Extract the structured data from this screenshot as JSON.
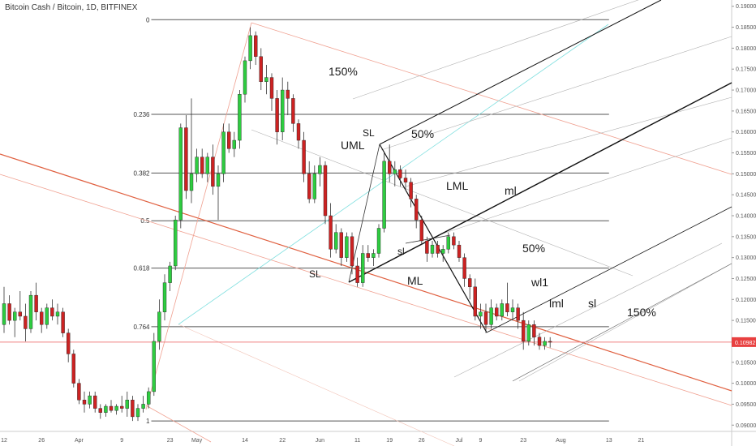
{
  "chart_data": {
    "type": "candlestick",
    "title": "Bitcoin Cash / Bitcoin, 1D, BITFINEX",
    "colors": {
      "up": "#2ecc40",
      "down": "#cc2222",
      "wick": "#333333",
      "price_line": "#f08080",
      "price_badge": "#e84040",
      "fib": "#555555",
      "fork_red": "#e06040",
      "fork_red_light": "#f0a090",
      "fork_black": "#111111",
      "fork_gray": "#b0b0b0",
      "cyan": "#7fdfdf"
    },
    "y_axis": {
      "ylim": [
        0.0885,
        0.1915
      ],
      "ticks": [
        "0.09000",
        "0.09500",
        "0.10000",
        "0.10500",
        "0.11000",
        "0.11500",
        "0.12000",
        "0.12500",
        "0.13000",
        "0.13500",
        "0.14000",
        "0.14500",
        "0.15000",
        "0.15500",
        "0.16000",
        "0.16500",
        "0.17000",
        "0.17500",
        "0.18000",
        "0.18500",
        "0.19000"
      ],
      "current_price": "0.10982"
    },
    "x_axis": {
      "labels": [
        {
          "t": 0,
          "label": "12"
        },
        {
          "t": 7,
          "label": "26"
        },
        {
          "t": 14,
          "label": "Apr"
        },
        {
          "t": 22,
          "label": "9"
        },
        {
          "t": 31,
          "label": "23"
        },
        {
          "t": 36,
          "label": "May"
        },
        {
          "t": 45,
          "label": "14"
        },
        {
          "t": 52,
          "label": "22"
        },
        {
          "t": 59,
          "label": "Jun"
        },
        {
          "t": 66,
          "label": "11"
        },
        {
          "t": 72,
          "label": "19"
        },
        {
          "t": 78,
          "label": "26"
        },
        {
          "t": 85,
          "label": "Jul"
        },
        {
          "t": 89,
          "label": "9"
        },
        {
          "t": 97,
          "label": "23"
        },
        {
          "t": 104,
          "label": "Aug"
        },
        {
          "t": 113,
          "label": "13"
        },
        {
          "t": 119,
          "label": "21"
        }
      ]
    },
    "candles": [
      {
        "t": 0,
        "o": 0.114,
        "h": 0.123,
        "l": 0.112,
        "c": 0.119
      },
      {
        "t": 1,
        "o": 0.119,
        "h": 0.121,
        "l": 0.114,
        "c": 0.115
      },
      {
        "t": 2,
        "o": 0.115,
        "h": 0.118,
        "l": 0.111,
        "c": 0.117
      },
      {
        "t": 3,
        "o": 0.117,
        "h": 0.122,
        "l": 0.115,
        "c": 0.116
      },
      {
        "t": 4,
        "o": 0.116,
        "h": 0.119,
        "l": 0.11,
        "c": 0.113
      },
      {
        "t": 5,
        "o": 0.113,
        "h": 0.122,
        "l": 0.112,
        "c": 0.121
      },
      {
        "t": 6,
        "o": 0.121,
        "h": 0.124,
        "l": 0.115,
        "c": 0.117
      },
      {
        "t": 7,
        "o": 0.117,
        "h": 0.118,
        "l": 0.112,
        "c": 0.114
      },
      {
        "t": 8,
        "o": 0.114,
        "h": 0.119,
        "l": 0.113,
        "c": 0.118
      },
      {
        "t": 9,
        "o": 0.118,
        "h": 0.12,
        "l": 0.115,
        "c": 0.116
      },
      {
        "t": 10,
        "o": 0.116,
        "h": 0.119,
        "l": 0.114,
        "c": 0.117
      },
      {
        "t": 11,
        "o": 0.117,
        "h": 0.118,
        "l": 0.111,
        "c": 0.112
      },
      {
        "t": 12,
        "o": 0.112,
        "h": 0.113,
        "l": 0.105,
        "c": 0.107
      },
      {
        "t": 13,
        "o": 0.107,
        "h": 0.108,
        "l": 0.099,
        "c": 0.1
      },
      {
        "t": 14,
        "o": 0.1,
        "h": 0.101,
        "l": 0.095,
        "c": 0.096
      },
      {
        "t": 15,
        "o": 0.096,
        "h": 0.098,
        "l": 0.093,
        "c": 0.095
      },
      {
        "t": 16,
        "o": 0.095,
        "h": 0.098,
        "l": 0.094,
        "c": 0.097
      },
      {
        "t": 17,
        "o": 0.097,
        "h": 0.098,
        "l": 0.093,
        "c": 0.094
      },
      {
        "t": 18,
        "o": 0.094,
        "h": 0.095,
        "l": 0.0915,
        "c": 0.093
      },
      {
        "t": 19,
        "o": 0.093,
        "h": 0.095,
        "l": 0.092,
        "c": 0.0945
      },
      {
        "t": 20,
        "o": 0.0945,
        "h": 0.096,
        "l": 0.093,
        "c": 0.0935
      },
      {
        "t": 21,
        "o": 0.0935,
        "h": 0.095,
        "l": 0.0925,
        "c": 0.0945
      },
      {
        "t": 22,
        "o": 0.0945,
        "h": 0.097,
        "l": 0.093,
        "c": 0.094
      },
      {
        "t": 23,
        "o": 0.094,
        "h": 0.098,
        "l": 0.092,
        "c": 0.096
      },
      {
        "t": 24,
        "o": 0.096,
        "h": 0.097,
        "l": 0.091,
        "c": 0.092
      },
      {
        "t": 25,
        "o": 0.092,
        "h": 0.095,
        "l": 0.091,
        "c": 0.094
      },
      {
        "t": 26,
        "o": 0.094,
        "h": 0.097,
        "l": 0.093,
        "c": 0.095
      },
      {
        "t": 27,
        "o": 0.095,
        "h": 0.099,
        "l": 0.094,
        "c": 0.098
      },
      {
        "t": 28,
        "o": 0.098,
        "h": 0.112,
        "l": 0.097,
        "c": 0.11
      },
      {
        "t": 29,
        "o": 0.11,
        "h": 0.12,
        "l": 0.108,
        "c": 0.117
      },
      {
        "t": 30,
        "o": 0.117,
        "h": 0.126,
        "l": 0.115,
        "c": 0.124
      },
      {
        "t": 31,
        "o": 0.124,
        "h": 0.129,
        "l": 0.122,
        "c": 0.128
      },
      {
        "t": 32,
        "o": 0.128,
        "h": 0.14,
        "l": 0.127,
        "c": 0.139
      },
      {
        "t": 33,
        "o": 0.139,
        "h": 0.162,
        "l": 0.137,
        "c": 0.161
      },
      {
        "t": 34,
        "o": 0.161,
        "h": 0.164,
        "l": 0.144,
        "c": 0.146
      },
      {
        "t": 35,
        "o": 0.146,
        "h": 0.168,
        "l": 0.143,
        "c": 0.15
      },
      {
        "t": 36,
        "o": 0.15,
        "h": 0.156,
        "l": 0.148,
        "c": 0.154
      },
      {
        "t": 37,
        "o": 0.154,
        "h": 0.156,
        "l": 0.149,
        "c": 0.15
      },
      {
        "t": 38,
        "o": 0.15,
        "h": 0.155,
        "l": 0.148,
        "c": 0.154
      },
      {
        "t": 39,
        "o": 0.154,
        "h": 0.157,
        "l": 0.145,
        "c": 0.147
      },
      {
        "t": 40,
        "o": 0.147,
        "h": 0.152,
        "l": 0.139,
        "c": 0.15
      },
      {
        "t": 41,
        "o": 0.15,
        "h": 0.162,
        "l": 0.148,
        "c": 0.16
      },
      {
        "t": 42,
        "o": 0.16,
        "h": 0.162,
        "l": 0.155,
        "c": 0.156
      },
      {
        "t": 43,
        "o": 0.156,
        "h": 0.16,
        "l": 0.154,
        "c": 0.158
      },
      {
        "t": 44,
        "o": 0.158,
        "h": 0.17,
        "l": 0.156,
        "c": 0.169
      },
      {
        "t": 45,
        "o": 0.169,
        "h": 0.178,
        "l": 0.167,
        "c": 0.177
      },
      {
        "t": 46,
        "o": 0.177,
        "h": 0.185,
        "l": 0.175,
        "c": 0.183
      },
      {
        "t": 47,
        "o": 0.183,
        "h": 0.184,
        "l": 0.176,
        "c": 0.178
      },
      {
        "t": 48,
        "o": 0.178,
        "h": 0.18,
        "l": 0.17,
        "c": 0.172
      },
      {
        "t": 49,
        "o": 0.172,
        "h": 0.176,
        "l": 0.169,
        "c": 0.173
      },
      {
        "t": 50,
        "o": 0.173,
        "h": 0.174,
        "l": 0.165,
        "c": 0.168
      },
      {
        "t": 51,
        "o": 0.168,
        "h": 0.17,
        "l": 0.157,
        "c": 0.16
      },
      {
        "t": 52,
        "o": 0.16,
        "h": 0.173,
        "l": 0.158,
        "c": 0.17
      },
      {
        "t": 53,
        "o": 0.17,
        "h": 0.172,
        "l": 0.164,
        "c": 0.168
      },
      {
        "t": 54,
        "o": 0.168,
        "h": 0.169,
        "l": 0.16,
        "c": 0.162
      },
      {
        "t": 55,
        "o": 0.162,
        "h": 0.163,
        "l": 0.156,
        "c": 0.158
      },
      {
        "t": 56,
        "o": 0.158,
        "h": 0.16,
        "l": 0.148,
        "c": 0.15
      },
      {
        "t": 57,
        "o": 0.15,
        "h": 0.153,
        "l": 0.143,
        "c": 0.144
      },
      {
        "t": 58,
        "o": 0.144,
        "h": 0.152,
        "l": 0.143,
        "c": 0.15
      },
      {
        "t": 59,
        "o": 0.15,
        "h": 0.154,
        "l": 0.147,
        "c": 0.152
      },
      {
        "t": 60,
        "o": 0.152,
        "h": 0.153,
        "l": 0.138,
        "c": 0.14
      },
      {
        "t": 61,
        "o": 0.14,
        "h": 0.143,
        "l": 0.13,
        "c": 0.132
      },
      {
        "t": 62,
        "o": 0.132,
        "h": 0.138,
        "l": 0.131,
        "c": 0.136
      },
      {
        "t": 63,
        "o": 0.136,
        "h": 0.137,
        "l": 0.128,
        "c": 0.13
      },
      {
        "t": 64,
        "o": 0.13,
        "h": 0.136,
        "l": 0.129,
        "c": 0.135
      },
      {
        "t": 65,
        "o": 0.135,
        "h": 0.136,
        "l": 0.126,
        "c": 0.128
      },
      {
        "t": 66,
        "o": 0.128,
        "h": 0.13,
        "l": 0.123,
        "c": 0.124
      },
      {
        "t": 67,
        "o": 0.124,
        "h": 0.133,
        "l": 0.123,
        "c": 0.131
      },
      {
        "t": 68,
        "o": 0.131,
        "h": 0.133,
        "l": 0.129,
        "c": 0.13
      },
      {
        "t": 69,
        "o": 0.13,
        "h": 0.132,
        "l": 0.128,
        "c": 0.131
      },
      {
        "t": 70,
        "o": 0.131,
        "h": 0.138,
        "l": 0.13,
        "c": 0.137
      },
      {
        "t": 71,
        "o": 0.137,
        "h": 0.155,
        "l": 0.136,
        "c": 0.153
      },
      {
        "t": 72,
        "o": 0.153,
        "h": 0.157,
        "l": 0.148,
        "c": 0.15
      },
      {
        "t": 73,
        "o": 0.15,
        "h": 0.153,
        "l": 0.147,
        "c": 0.151
      },
      {
        "t": 74,
        "o": 0.151,
        "h": 0.152,
        "l": 0.147,
        "c": 0.149
      },
      {
        "t": 75,
        "o": 0.149,
        "h": 0.151,
        "l": 0.146,
        "c": 0.148
      },
      {
        "t": 76,
        "o": 0.148,
        "h": 0.149,
        "l": 0.142,
        "c": 0.144
      },
      {
        "t": 77,
        "o": 0.144,
        "h": 0.145,
        "l": 0.137,
        "c": 0.139
      },
      {
        "t": 78,
        "o": 0.139,
        "h": 0.14,
        "l": 0.133,
        "c": 0.134
      },
      {
        "t": 79,
        "o": 0.134,
        "h": 0.135,
        "l": 0.129,
        "c": 0.131
      },
      {
        "t": 80,
        "o": 0.131,
        "h": 0.134,
        "l": 0.13,
        "c": 0.133
      },
      {
        "t": 81,
        "o": 0.133,
        "h": 0.134,
        "l": 0.13,
        "c": 0.131
      },
      {
        "t": 82,
        "o": 0.131,
        "h": 0.133,
        "l": 0.129,
        "c": 0.132
      },
      {
        "t": 83,
        "o": 0.132,
        "h": 0.136,
        "l": 0.131,
        "c": 0.135
      },
      {
        "t": 84,
        "o": 0.135,
        "h": 0.136,
        "l": 0.132,
        "c": 0.133
      },
      {
        "t": 85,
        "o": 0.133,
        "h": 0.134,
        "l": 0.129,
        "c": 0.13
      },
      {
        "t": 86,
        "o": 0.13,
        "h": 0.131,
        "l": 0.123,
        "c": 0.125
      },
      {
        "t": 87,
        "o": 0.125,
        "h": 0.126,
        "l": 0.12,
        "c": 0.123
      },
      {
        "t": 88,
        "o": 0.123,
        "h": 0.125,
        "l": 0.115,
        "c": 0.116
      },
      {
        "t": 89,
        "o": 0.116,
        "h": 0.119,
        "l": 0.113,
        "c": 0.117
      },
      {
        "t": 90,
        "o": 0.117,
        "h": 0.119,
        "l": 0.112,
        "c": 0.114
      },
      {
        "t": 91,
        "o": 0.114,
        "h": 0.12,
        "l": 0.113,
        "c": 0.118
      },
      {
        "t": 92,
        "o": 0.118,
        "h": 0.119,
        "l": 0.115,
        "c": 0.116
      },
      {
        "t": 93,
        "o": 0.116,
        "h": 0.12,
        "l": 0.115,
        "c": 0.119
      },
      {
        "t": 94,
        "o": 0.119,
        "h": 0.124,
        "l": 0.116,
        "c": 0.117
      },
      {
        "t": 95,
        "o": 0.117,
        "h": 0.12,
        "l": 0.115,
        "c": 0.118
      },
      {
        "t": 96,
        "o": 0.118,
        "h": 0.119,
        "l": 0.113,
        "c": 0.115
      },
      {
        "t": 97,
        "o": 0.115,
        "h": 0.117,
        "l": 0.108,
        "c": 0.11
      },
      {
        "t": 98,
        "o": 0.11,
        "h": 0.115,
        "l": 0.109,
        "c": 0.114
      },
      {
        "t": 99,
        "o": 0.114,
        "h": 0.115,
        "l": 0.109,
        "c": 0.111
      },
      {
        "t": 100,
        "o": 0.111,
        "h": 0.112,
        "l": 0.108,
        "c": 0.109
      },
      {
        "t": 101,
        "o": 0.109,
        "h": 0.111,
        "l": 0.108,
        "c": 0.11
      },
      {
        "t": 102,
        "o": 0.11,
        "h": 0.111,
        "l": 0.1085,
        "c": 0.1098
      }
    ],
    "fib_levels": [
      {
        "label": "0",
        "y": 0.1868
      },
      {
        "label": "0.236",
        "y": 0.1642
      },
      {
        "label": "0.382",
        "y": 0.1502
      },
      {
        "label": "0.5",
        "y": 0.1388
      },
      {
        "label": "0.618",
        "y": 0.1275
      },
      {
        "label": "0.764",
        "y": 0.1135
      },
      {
        "label": "1",
        "y": 0.091
      }
    ],
    "annotations": [
      {
        "text": "150%"
      },
      {
        "text": "UML"
      },
      {
        "text": "SL"
      },
      {
        "text": "50%"
      },
      {
        "text": "LML"
      },
      {
        "text": "ml"
      },
      {
        "text": "sl"
      },
      {
        "text": "SL"
      },
      {
        "text": "ML"
      },
      {
        "text": "50%"
      },
      {
        "text": "wl1"
      },
      {
        "text": "lml"
      },
      {
        "text": "sl"
      },
      {
        "text": "150%"
      }
    ]
  }
}
